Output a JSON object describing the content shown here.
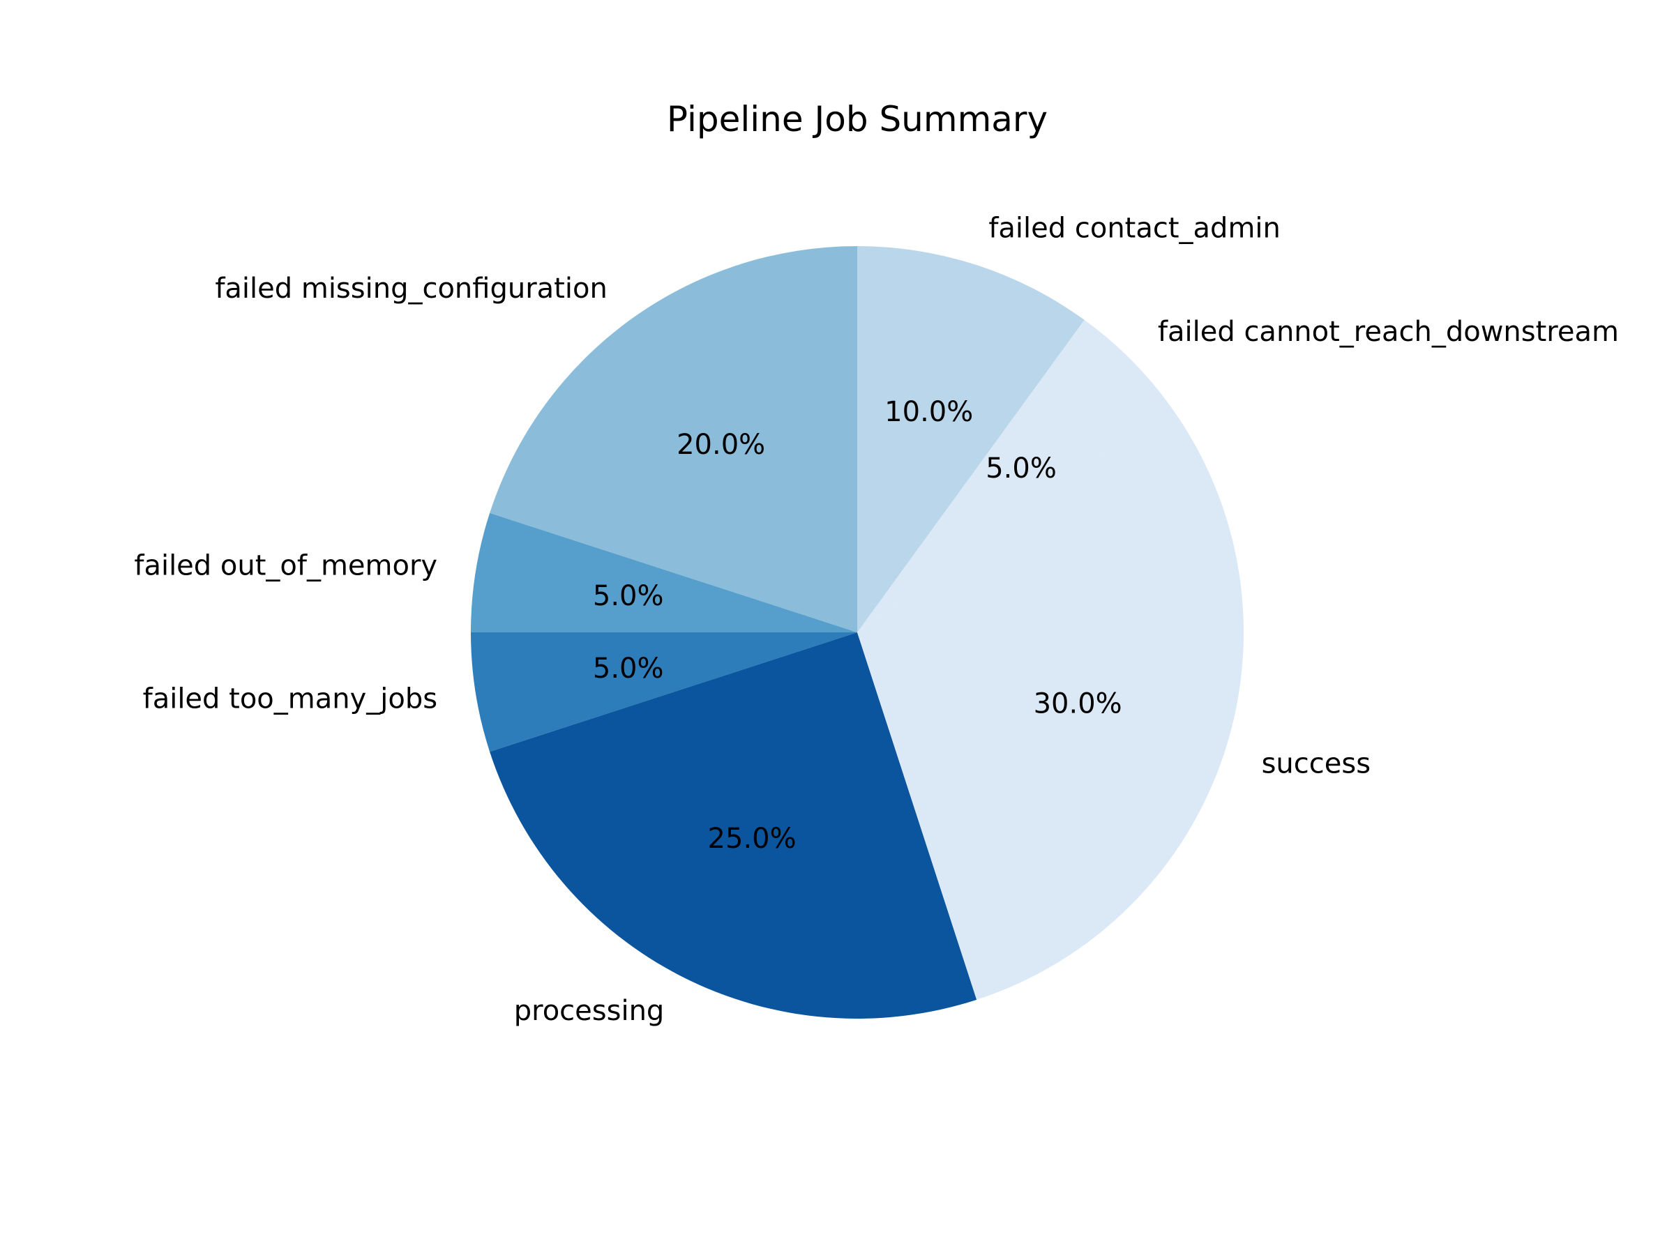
{
  "chart_data": {
    "type": "pie",
    "title": "Pipeline Job Summary",
    "start_angle_deg": 90,
    "direction": "counterclockwise",
    "slices": [
      {
        "label": "failed missing_configuration",
        "value": 20.0,
        "pct_label": "20.0%",
        "color": "#8bbdda"
      },
      {
        "label": "failed out_of_memory",
        "value": 5.0,
        "pct_label": "5.0%",
        "color": "#569fcd"
      },
      {
        "label": "failed too_many_jobs",
        "value": 5.0,
        "pct_label": "5.0%",
        "color": "#2d7dbb"
      },
      {
        "label": "processing",
        "value": 25.0,
        "pct_label": "25.0%",
        "color": "#0b559f"
      },
      {
        "label": "success",
        "value": 30.0,
        "pct_label": "30.0%",
        "color": "#dbe9f6"
      },
      {
        "label": "failed cannot_reach_downstream",
        "value": 5.0,
        "pct_label": "5.0%",
        "color": "#dbe9f6"
      },
      {
        "label": "failed contact_admin",
        "value": 10.0,
        "pct_label": "10.0%",
        "color": "#bad6eb"
      }
    ]
  }
}
